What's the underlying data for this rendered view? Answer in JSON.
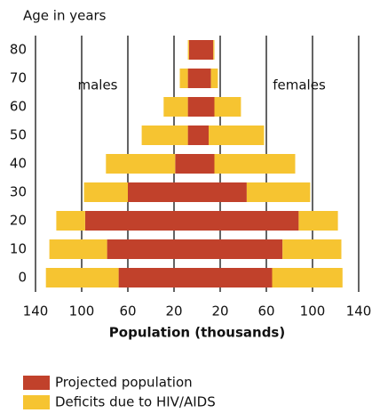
{
  "chart_data": {
    "type": "pyramid",
    "title": "Age in years",
    "x_label": "Population (thousands)",
    "annotations": [
      "males",
      "females"
    ],
    "categories": [
      "0",
      "10",
      "20",
      "30",
      "40",
      "50",
      "60",
      "70",
      "80"
    ],
    "series": [
      {
        "name": "Projected population",
        "color": "#c1412b",
        "males": [
          68,
          78,
          97,
          60,
          19,
          8,
          8,
          8,
          7
        ],
        "females": [
          65,
          74,
          88,
          43,
          15,
          10,
          15,
          12,
          14
        ]
      },
      {
        "name": "Deficits due to HIV/AIDS",
        "color": "#f6c431",
        "males": [
          63,
          50,
          25,
          38,
          60,
          40,
          21,
          7,
          1
        ],
        "females": [
          61,
          51,
          34,
          55,
          70,
          48,
          23,
          6,
          1
        ]
      }
    ],
    "xlim": [
      -150,
      150
    ],
    "xticks": [
      {
        "value": -140,
        "label": "140"
      },
      {
        "value": -100,
        "label": "100"
      },
      {
        "value": -60,
        "label": "60"
      },
      {
        "value": -20,
        "label": "20"
      },
      20,
      60,
      100,
      140
    ],
    "grid": true
  }
}
